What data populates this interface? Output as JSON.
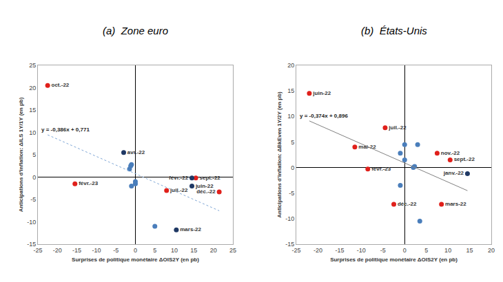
{
  "chart_data": [
    {
      "type": "scatter",
      "title": "(a)  Zone euro",
      "x_label": "Surprises de politique monétaire ΔOIS2Y (en pb)",
      "y_label": "Anticipations d'inflation: ΔILS 1Y/1Y (en pb)",
      "xlim": [
        -25,
        25
      ],
      "xticks": [
        -25,
        -20,
        -15,
        -10,
        -5,
        0,
        5,
        10,
        15,
        20,
        25
      ],
      "ylim": [
        -15,
        25
      ],
      "yticks": [
        -15,
        -10,
        -5,
        0,
        5,
        10,
        15,
        20,
        25
      ],
      "grid": false,
      "series": [
        {
          "color": "#e0201b",
          "x": [
            -22.5,
            -15.5,
            8,
            15.5,
            21.5
          ],
          "values": [
            20.5,
            -1.5,
            -3,
            -0.2,
            -3.3
          ],
          "labels": [
            "oct.-22",
            "févr.-23",
            "juil.-22",
            "sept.-22",
            "déc.-22"
          ]
        },
        {
          "color": "#1f3864",
          "x": [
            -3,
            14.5,
            14.5,
            10.5
          ],
          "values": [
            5.5,
            -0.2,
            -2,
            -11.8
          ],
          "labels": [
            "avr.-22",
            "févr.-22",
            "juin-22",
            "mars-22"
          ]
        },
        {
          "color": "#4a7ebb",
          "x": [
            -1.5,
            -1.2,
            -1,
            -1,
            0,
            0,
            5
          ],
          "values": [
            1.8,
            2.5,
            2.8,
            -2,
            -1,
            -1.5,
            -11
          ],
          "labels": [
            null,
            null,
            null,
            null,
            null,
            null,
            null
          ]
        }
      ],
      "trendline": {
        "slope": -0.386,
        "intercept": 0.771,
        "label": "y = -0,386x + 0,771",
        "color": "#7fa7d6",
        "line_style": "dotted"
      }
    },
    {
      "type": "scatter",
      "title": "(b)  États-Unis",
      "x_label": "Surprises de politique monétaire ΔOIS2Y (en pb)",
      "y_label": "Anticipations d'inflation: ΔBkEven 1Y/2Y (en pb)",
      "xlim": [
        -25,
        20
      ],
      "xticks": [
        -25,
        -20,
        -15,
        -10,
        -5,
        0,
        5,
        10,
        15,
        20
      ],
      "ylim": [
        -15,
        20
      ],
      "yticks": [
        -15,
        -10,
        -5,
        0,
        5,
        10,
        15,
        20
      ],
      "grid": false,
      "series": [
        {
          "color": "#e0201b",
          "x": [
            -22,
            -4.5,
            -11.5,
            -8.5,
            7.5,
            10.5,
            -2.5,
            8.5
          ],
          "values": [
            14.5,
            7.8,
            4,
            -0.3,
            2.8,
            1.5,
            -7.2,
            -7.2
          ],
          "labels": [
            "juin-22",
            "juil.-22",
            "mai-22",
            "févr.-23",
            "nov.-22",
            "sept.-22",
            "déc.-22",
            "mars-22"
          ]
        },
        {
          "color": "#1f3864",
          "x": [
            14.5
          ],
          "values": [
            -1.2
          ],
          "labels": [
            "janv.-22"
          ]
        },
        {
          "color": "#4a7ebb",
          "x": [
            -1,
            0,
            0,
            3,
            2,
            2.3,
            -1,
            3.5
          ],
          "values": [
            2.8,
            4.5,
            1.5,
            4.5,
            0,
            0.2,
            -3.5,
            -10.5
          ],
          "labels": [
            null,
            null,
            null,
            null,
            null,
            null,
            null,
            null
          ]
        }
      ],
      "trendline": {
        "slope": -0.374,
        "intercept": 0.896,
        "label": "y = -0,374x + 0,896",
        "color": "#808080",
        "line_style": "solid"
      }
    }
  ]
}
